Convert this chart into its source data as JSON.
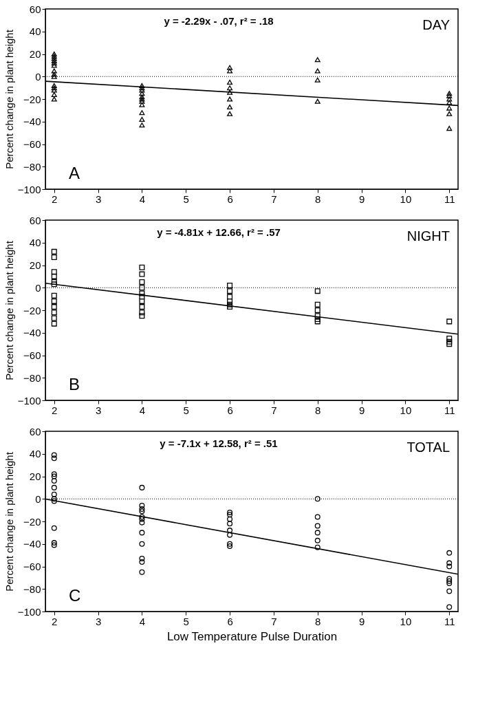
{
  "chart_data": [
    {
      "type": "scatter",
      "ylabel": "Percent change in plant height",
      "xlim": [
        1.8,
        11.2
      ],
      "ylim": [
        -100,
        60
      ],
      "xticks": [
        2,
        3,
        4,
        5,
        6,
        7,
        8,
        9,
        10,
        11
      ],
      "yticks": [
        -100,
        -80,
        -60,
        -40,
        -20,
        0,
        20,
        40,
        60
      ],
      "grid": false,
      "annotations": [
        "y = -2.29x - .07, r² = .18",
        "DAY",
        "A"
      ],
      "ref_lines": [
        {
          "axis": "y",
          "value": 0,
          "line_style": "dotted",
          "color": "#000000"
        }
      ],
      "series": [
        {
          "marker": "triangle",
          "color": "#000000",
          "x": [
            2,
            2,
            2,
            2,
            2,
            2,
            2,
            2,
            2,
            2,
            2,
            2,
            2,
            2,
            4,
            4,
            4,
            4,
            4,
            4,
            4,
            4,
            4,
            4,
            4,
            6,
            6,
            6,
            6,
            6,
            6,
            6,
            6,
            8,
            8,
            8,
            8,
            11,
            11,
            11,
            11,
            11,
            11,
            11
          ],
          "values": [
            20,
            18,
            16,
            14,
            12,
            10,
            5,
            2,
            0,
            -8,
            -10,
            -12,
            -16,
            -20,
            -8,
            -10,
            -12,
            -15,
            -18,
            -20,
            -22,
            -25,
            -32,
            -38,
            -43,
            8,
            5,
            -5,
            -10,
            -14,
            -20,
            -27,
            -33,
            15,
            5,
            -3,
            -22,
            -15,
            -17,
            -20,
            -23,
            -28,
            -33,
            -46
          ]
        },
        {
          "type": "line",
          "color": "#000000",
          "x": [
            1.8,
            11.2
          ],
          "values": [
            -4.2,
            -25.7
          ]
        }
      ]
    },
    {
      "type": "scatter",
      "ylabel": "Percent change in plant height",
      "xlim": [
        1.8,
        11.2
      ],
      "ylim": [
        -100,
        60
      ],
      "xticks": [
        2,
        3,
        4,
        5,
        6,
        7,
        8,
        9,
        10,
        11
      ],
      "yticks": [
        -100,
        -80,
        -60,
        -40,
        -20,
        0,
        20,
        40,
        60
      ],
      "grid": false,
      "annotations": [
        "y = -4.81x + 12.66, r² = .57",
        "NIGHT",
        "B"
      ],
      "ref_lines": [
        {
          "axis": "y",
          "value": 0,
          "line_style": "dotted",
          "color": "#000000"
        }
      ],
      "series": [
        {
          "marker": "square",
          "color": "#000000",
          "x": [
            2,
            2,
            2,
            2,
            2,
            2,
            2,
            2,
            2,
            2,
            2,
            2,
            4,
            4,
            4,
            4,
            4,
            4,
            4,
            4,
            4,
            4,
            6,
            6,
            6,
            6,
            6,
            6,
            8,
            8,
            8,
            8,
            8,
            8,
            11,
            11,
            11,
            11
          ],
          "values": [
            32,
            27,
            14,
            10,
            5,
            3,
            -7,
            -12,
            -17,
            -22,
            -27,
            -32,
            18,
            12,
            5,
            0,
            -5,
            -8,
            -12,
            -17,
            -22,
            -25,
            2,
            -3,
            -8,
            -12,
            -15,
            -17,
            -3,
            -15,
            -20,
            -25,
            -28,
            -30,
            -30,
            -45,
            -48,
            -50
          ]
        },
        {
          "type": "line",
          "color": "#000000",
          "x": [
            1.8,
            11.2
          ],
          "values": [
            4.0,
            -41.2
          ]
        }
      ]
    },
    {
      "type": "scatter",
      "ylabel": "Percent change in plant height",
      "xlabel": "Low Temperature Pulse Duration",
      "xlim": [
        1.8,
        11.2
      ],
      "ylim": [
        -100,
        60
      ],
      "xticks": [
        2,
        3,
        4,
        5,
        6,
        7,
        8,
        9,
        10,
        11
      ],
      "yticks": [
        -100,
        -80,
        -60,
        -40,
        -20,
        0,
        20,
        40,
        60
      ],
      "grid": false,
      "annotations": [
        "y = -7.1x + 12.58, r² = .51",
        "TOTAL",
        "C"
      ],
      "ref_lines": [
        {
          "axis": "y",
          "value": 0,
          "line_style": "dotted",
          "color": "#000000"
        }
      ],
      "series": [
        {
          "marker": "circle",
          "color": "#000000",
          "x": [
            2,
            2,
            2,
            2,
            2,
            2,
            2,
            2,
            2,
            2,
            2,
            2,
            4,
            4,
            4,
            4,
            4,
            4,
            4,
            4,
            4,
            4,
            4,
            4,
            6,
            6,
            6,
            6,
            6,
            6,
            6,
            6,
            8,
            8,
            8,
            8,
            8,
            8,
            11,
            11,
            11,
            11,
            11,
            11,
            11,
            11
          ],
          "values": [
            39,
            36,
            22,
            20,
            16,
            10,
            4,
            0,
            -2,
            -26,
            -39,
            -41,
            10,
            -6,
            -9,
            -11,
            -16,
            -18,
            -21,
            -30,
            -40,
            -53,
            -56,
            -65,
            -12,
            -14,
            -18,
            -22,
            -28,
            -32,
            -40,
            -42,
            0,
            -16,
            -24,
            -30,
            -37,
            -43,
            -48,
            -57,
            -60,
            -71,
            -73,
            -75,
            -82,
            -96
          ]
        },
        {
          "type": "line",
          "color": "#000000",
          "x": [
            1.8,
            11.2
          ],
          "values": [
            -0.2,
            -66.9
          ]
        }
      ]
    }
  ]
}
